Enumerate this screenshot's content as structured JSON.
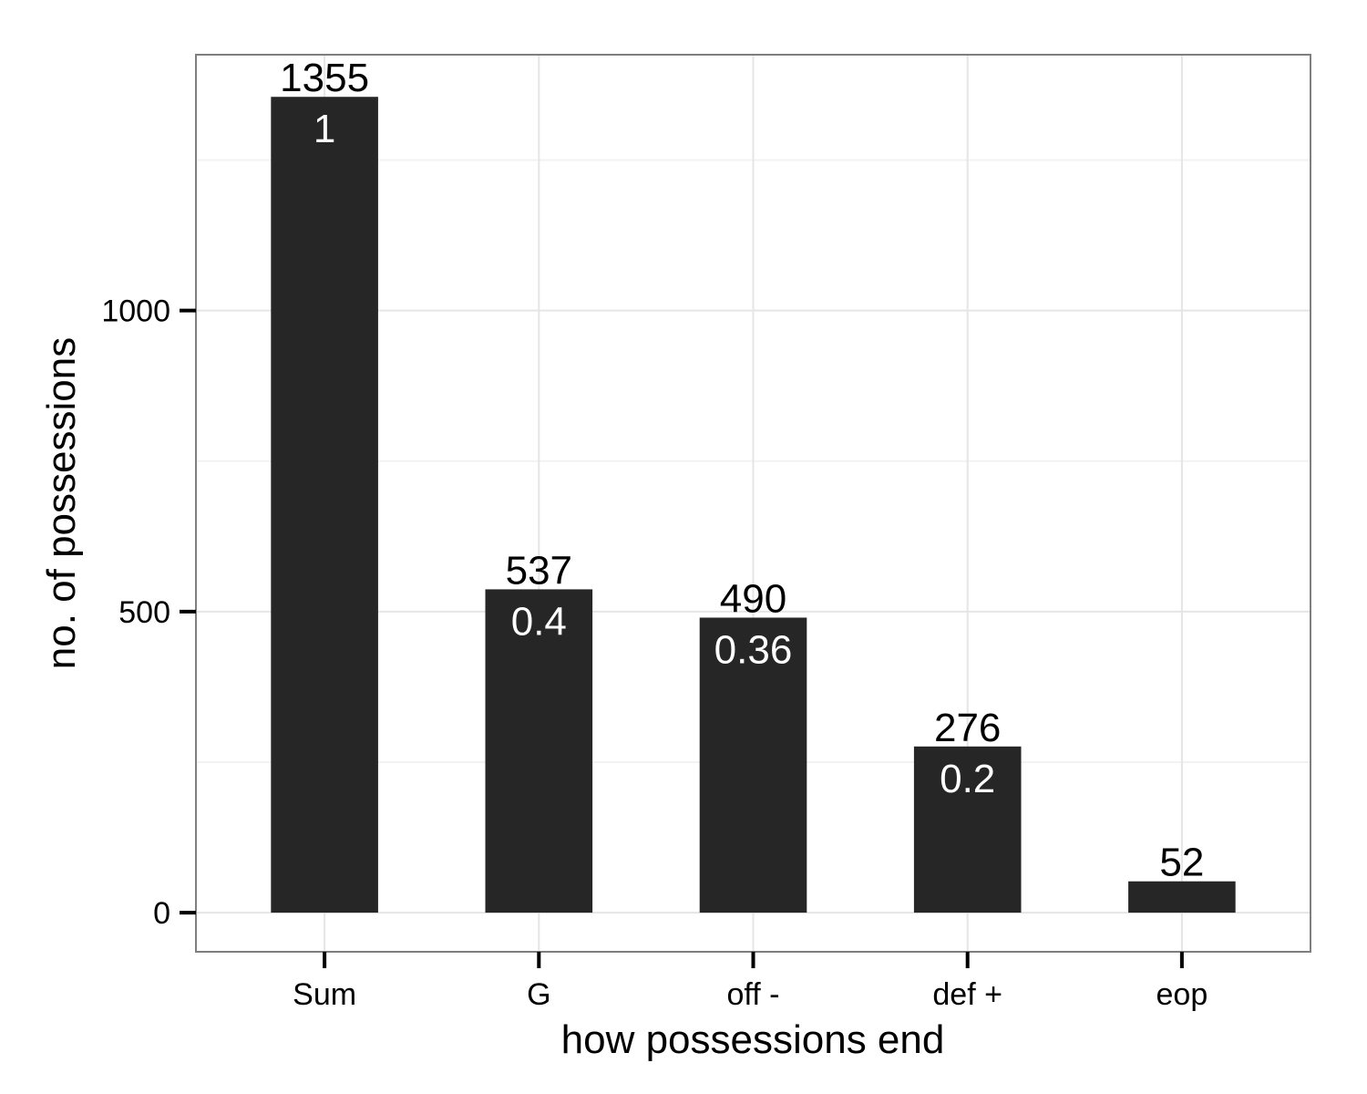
{
  "chart_data": {
    "type": "bar",
    "categories": [
      "Sum",
      "G",
      "off -",
      "def +",
      "eop"
    ],
    "values": [
      1355,
      537,
      490,
      276,
      52
    ],
    "value_labels": [
      "1355",
      "537",
      "490",
      "276",
      "52"
    ],
    "fraction_labels": [
      "1",
      "0.4",
      "0.36",
      "0.2",
      ""
    ],
    "xlabel": "how possessions end",
    "ylabel": "no. of possessions",
    "ylim": [
      -65,
      1425
    ],
    "yticks": [
      0,
      500,
      1000
    ],
    "ytick_labels": [
      "0",
      "500",
      "1000"
    ],
    "grid": true,
    "colors": {
      "bar": "#262626",
      "grid": "#e5e5e5",
      "frame": "#7f7f7f",
      "background": "#ffffff"
    }
  }
}
